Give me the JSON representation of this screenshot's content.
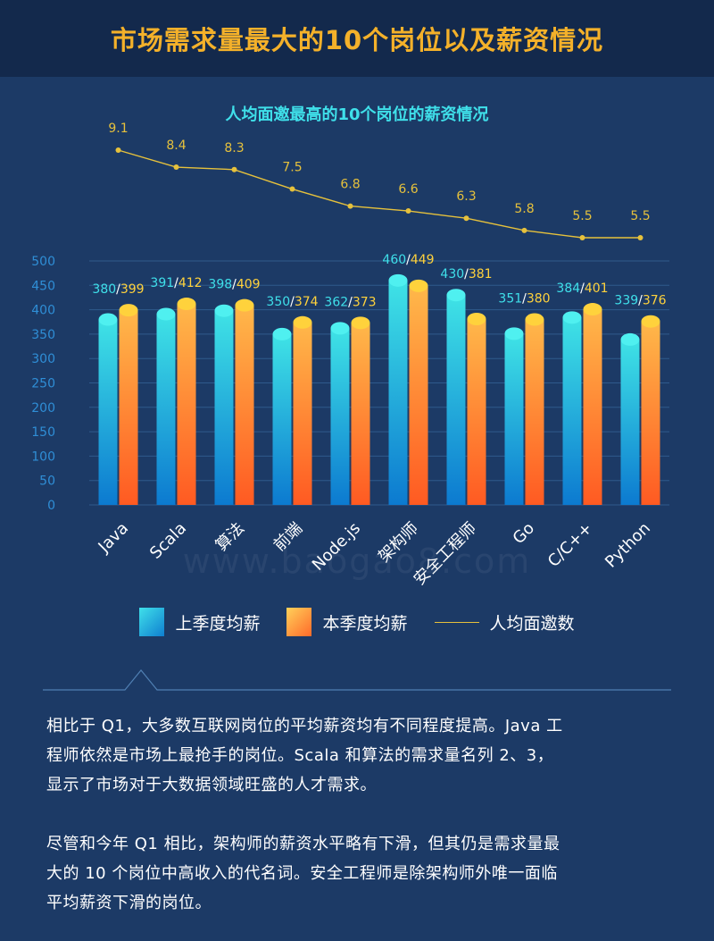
{
  "header": {
    "title": "市场需求量最大的10个岗位以及薪资情况"
  },
  "chart_title": "人均面邀最高的10个岗位的薪资情况",
  "colors": {
    "last_quarter": "#1fb8e0",
    "this_quarter": "#ff8a2a",
    "line": "#e6c13c",
    "title": "#f4b12a"
  },
  "chart_data": {
    "type": "bar",
    "categories": [
      "Java",
      "Scala",
      "算法",
      "前端",
      "Node.js",
      "架构师",
      "安全工程师",
      "Go",
      "C/C++",
      "Python"
    ],
    "series": [
      {
        "name": "上季度均薪",
        "values": [
          380,
          391,
          398,
          350,
          362,
          460,
          430,
          351,
          384,
          339
        ]
      },
      {
        "name": "本季度均薪",
        "values": [
          399,
          412,
          409,
          374,
          373,
          449,
          381,
          380,
          401,
          376
        ]
      }
    ],
    "line_series": {
      "name": "人均面邀数",
      "values": [
        9.1,
        8.4,
        8.3,
        7.5,
        6.8,
        6.6,
        6.3,
        5.8,
        5.5,
        5.5
      ]
    },
    "bar_labels": [
      "380/399",
      "391/412",
      "398/409",
      "350/374",
      "362/373",
      "460/449",
      "430/381",
      "351/380",
      "384/401",
      "339/376"
    ],
    "y_ticks": [
      0,
      50,
      100,
      150,
      200,
      250,
      300,
      350,
      400,
      450,
      500
    ],
    "ylim": [
      0,
      500
    ]
  },
  "legend": {
    "last": "上季度均薪",
    "cur": "本季度均薪",
    "line": "人均面邀数"
  },
  "watermark": "www.baogao8.com",
  "paragraphs": [
    [
      "相比于 Q1，大多数互联网岗位的平均薪资均有不同程度提高。Java 工",
      "程师依然是市场上最抢手的岗位。Scala 和算法的需求量名列 2、3，",
      "显示了市场对于大数据领域旺盛的人才需求。"
    ],
    [
      "尽管和今年 Q1 相比，架构师的薪资水平略有下滑，但其仍是需求量最",
      "大的 10 个岗位中高收入的代名词。安全工程师是除架构师外唯一面临",
      "平均薪资下滑的岗位。"
    ]
  ]
}
